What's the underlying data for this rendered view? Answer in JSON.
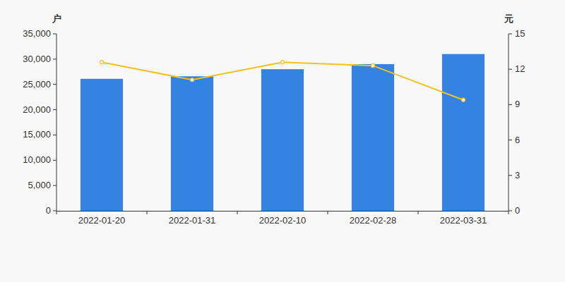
{
  "chart_data": {
    "type": "bar",
    "ylabel": "户",
    "y2label": "元",
    "categories": [
      "2022-01-20",
      "2022-01-31",
      "2022-02-10",
      "2022-02-28",
      "2022-03-31"
    ],
    "series": [
      {
        "type": "bar",
        "color": "#3482e2",
        "values": [
          26100,
          26600,
          28000,
          29000,
          31000
        ]
      },
      {
        "type": "line",
        "axis": "y2",
        "color": "#f4c21e",
        "marker": "circle",
        "values": [
          12.6,
          11.1,
          12.6,
          12.3,
          9.4
        ]
      }
    ],
    "ylim": [
      0,
      35000
    ],
    "yticks": [
      0,
      {
        "value": 5000,
        "label": "5,000"
      },
      {
        "value": 10000,
        "label": "10,000"
      },
      {
        "value": 15000,
        "label": "15,000"
      },
      {
        "value": 20000,
        "label": "20,000"
      },
      {
        "value": 25000,
        "label": "25,000"
      },
      {
        "value": 30000,
        "label": "30,000"
      },
      {
        "value": 35000,
        "label": "35,000"
      }
    ],
    "y2lim": [
      0,
      15
    ],
    "y2ticks": [
      0,
      3,
      6,
      9,
      12,
      15
    ],
    "grid": false
  }
}
